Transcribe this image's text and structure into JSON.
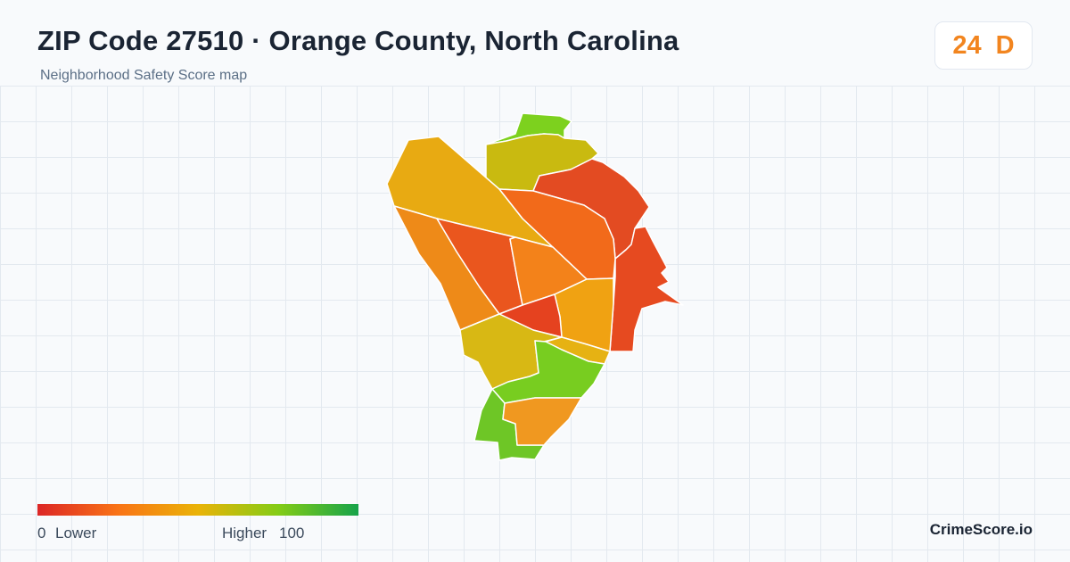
{
  "header": {
    "title": "ZIP Code 27510 · Orange County, North Carolina",
    "subtitle": "Neighborhood Safety Score map"
  },
  "badge": {
    "score": "24",
    "grade": "D",
    "color": "#f2851f"
  },
  "legend": {
    "min": "0",
    "min_label": "Lower",
    "max_label": "Higher",
    "max": "100",
    "gradient_colors": [
      "#dc2626",
      "#f97316",
      "#eab308",
      "#84cc16",
      "#16a34a"
    ]
  },
  "brand": "CrimeScore.io",
  "map": {
    "region_colors": {
      "north-tip": "#7dd11e",
      "north-central": "#c9ba10",
      "northeast-high": "#e34b22",
      "east-edge": "#e64a20",
      "northwest-upper": "#e8aa12",
      "center-north": "#f26a1a",
      "west-strip": "#ee8a18",
      "west-central": "#ea561e",
      "center": "#f3821a",
      "east-central": "#f0a212",
      "center-hot": "#e5421f",
      "south-west": "#d8b814",
      "south-east-small": "#e6b213",
      "south-green-upper": "#78cd20",
      "south-green-west": "#6ec626",
      "south-orange": "#f09820"
    }
  }
}
